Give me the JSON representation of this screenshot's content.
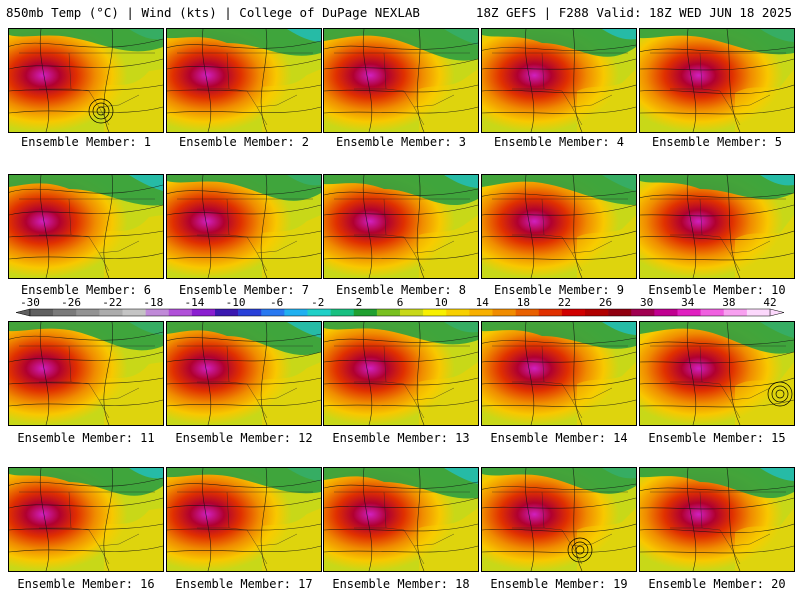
{
  "header": {
    "left": "850mb Temp (°C) | Wind (kts) | College of DuPage NEXLAB",
    "right": "18Z GEFS | F288 Valid: 18Z WED JUN 18 2025"
  },
  "panels": [
    {
      "label": "Ensemble Member: 1",
      "low": true
    },
    {
      "label": "Ensemble Member: 2"
    },
    {
      "label": "Ensemble Member: 3"
    },
    {
      "label": "Ensemble Member: 4"
    },
    {
      "label": "Ensemble Member: 5"
    },
    {
      "label": "Ensemble Member: 6"
    },
    {
      "label": "Ensemble Member: 7"
    },
    {
      "label": "Ensemble Member: 8"
    },
    {
      "label": "Ensemble Member: 9"
    },
    {
      "label": "Ensemble Member: 10"
    },
    {
      "label": "Ensemble Member: 11"
    },
    {
      "label": "Ensemble Member: 12"
    },
    {
      "label": "Ensemble Member: 13"
    },
    {
      "label": "Ensemble Member: 14"
    },
    {
      "label": "Ensemble Member: 15",
      "low": true
    },
    {
      "label": "Ensemble Member: 16"
    },
    {
      "label": "Ensemble Member: 17"
    },
    {
      "label": "Ensemble Member: 18"
    },
    {
      "label": "Ensemble Member: 19",
      "low": true
    },
    {
      "label": "Ensemble Member: 20"
    }
  ],
  "colorbar": {
    "labels": [
      "-30",
      "-26",
      "-22",
      "-18",
      "-14",
      "-10",
      "-6",
      "-2",
      "2",
      "6",
      "10",
      "14",
      "18",
      "22",
      "26",
      "30",
      "34",
      "38",
      "42"
    ],
    "colors": [
      "#606060",
      "#7a7a7a",
      "#939393",
      "#acacac",
      "#c4c4c4",
      "#c08ad8",
      "#b050d8",
      "#8a1ed0",
      "#3a18b0",
      "#2840d8",
      "#2878f0",
      "#20b0f0",
      "#20d0c8",
      "#18c080",
      "#20a030",
      "#78c020",
      "#c8d818",
      "#f8f000",
      "#f8d000",
      "#f8b000",
      "#f08c00",
      "#e86000",
      "#e03000",
      "#d00000",
      "#b00000",
      "#900010",
      "#a00050",
      "#c00090",
      "#e020c0",
      "#f060e0",
      "#f8a0f0",
      "#fcd8fc"
    ]
  }
}
